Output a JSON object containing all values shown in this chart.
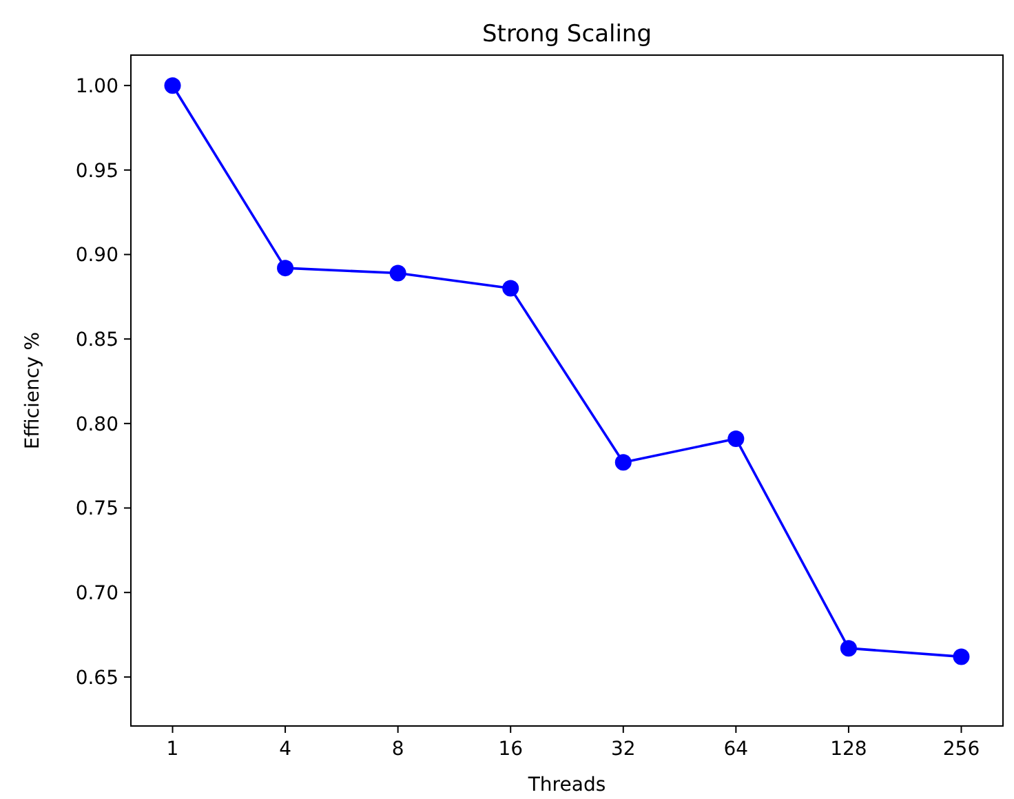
{
  "chart_data": {
    "type": "line",
    "title": "Strong Scaling",
    "xlabel": "Threads",
    "ylabel": "Efficiency %",
    "categories": [
      "1",
      "4",
      "8",
      "16",
      "32",
      "64",
      "128",
      "256"
    ],
    "series": [
      {
        "color": "#0000ff",
        "values": [
          1.0,
          0.892,
          0.889,
          0.88,
          0.777,
          0.791,
          0.667,
          0.662
        ]
      }
    ],
    "ylim": [
      0.621,
      1.018
    ],
    "yticks": [
      {
        "value": 0.65,
        "label": "0.65"
      },
      {
        "value": 0.7,
        "label": "0.70"
      },
      {
        "value": 0.75,
        "label": "0.75"
      },
      {
        "value": 0.8,
        "label": "0.80"
      },
      {
        "value": 0.85,
        "label": "0.85"
      },
      {
        "value": 0.9,
        "label": "0.90"
      },
      {
        "value": 0.95,
        "label": "0.95"
      },
      {
        "value": 1.0,
        "label": "1.00"
      }
    ],
    "marker": "circle",
    "line_style": "solid",
    "grid": false
  }
}
